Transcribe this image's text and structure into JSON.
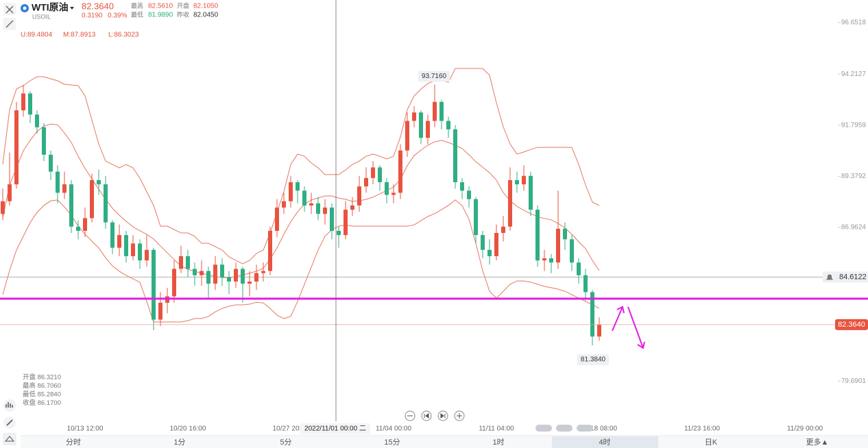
{
  "header": {
    "name": "WTI原油",
    "symbol": "USOIL",
    "price": "82.3640",
    "change": "0.3190",
    "change_pct": "0.39%",
    "high_label": "最高",
    "high": "82.5610",
    "open_label": "开盘",
    "open": "82.1050",
    "low_label": "最低",
    "low": "81.9890",
    "prev_close_label": "昨收",
    "prev_close": "82.0450"
  },
  "chart_data": {
    "type": "candlestick",
    "indicator_labels": [
      "U:89.4804",
      "M:87.8913",
      "L:86.3023"
    ],
    "ohlc_info": [
      "开盘 86.3210",
      "最高 86.7060",
      "最低 85.2840",
      "收盘 86.1700"
    ],
    "crosshair_label": "2022/11/01 00:00 二",
    "ylim": [
      77.79,
      97.72
    ],
    "yticks": [
      96.6518,
      94.2127,
      91.7959,
      89.3792,
      86.9624,
      79.6901
    ],
    "up_color": "#e8533f",
    "down_color": "#2fae84",
    "band_color": "#e7765f",
    "categories": [
      null,
      null,
      null,
      null,
      null,
      null,
      null,
      null,
      null,
      null,
      null,
      null,
      "10/13 12:00",
      null,
      null,
      null,
      null,
      null,
      null,
      null,
      null,
      null,
      null,
      null,
      null,
      null,
      null,
      "10/20 16:00",
      null,
      null,
      null,
      null,
      null,
      null,
      null,
      null,
      null,
      null,
      null,
      null,
      null,
      null,
      "10/27 20:00",
      null,
      null,
      null,
      null,
      null,
      null,
      null,
      null,
      null,
      null,
      null,
      null,
      null,
      null,
      "11/04 00:00",
      null,
      null,
      null,
      null,
      null,
      null,
      null,
      null,
      null,
      null,
      null,
      null,
      null,
      null,
      "11/11 04:00",
      null,
      null,
      null,
      null,
      null,
      null,
      null,
      null,
      null,
      null,
      null,
      null,
      null,
      null,
      "11/18 08:00",
      null,
      null,
      null,
      null,
      null,
      null,
      null,
      null,
      null,
      null,
      null,
      null,
      null,
      null,
      "11/23 16:00",
      null,
      null,
      null,
      null,
      null,
      null,
      null,
      null,
      null,
      null,
      null,
      null,
      null,
      null,
      "11/29 00:00",
      null,
      null
    ],
    "open": [
      87.6,
      88.2,
      89.0,
      92.5,
      93.3,
      92.3,
      91.7,
      90.4,
      89.6,
      88.6,
      89.0,
      87.0,
      86.8,
      87.4,
      89.2,
      89.0,
      87.2,
      86.0,
      86.6,
      85.6,
      86.2,
      85.4,
      85.9,
      82.6,
      83.4,
      83.7,
      85.0,
      85.6,
      85.0,
      84.7,
      84.9,
      84.3,
      85.2,
      84.6,
      84.4,
      85.0,
      84.3,
      84.4,
      84.8,
      84.9,
      86.8,
      87.9,
      88.2,
      89.1,
      88.7,
      88.0,
      88.1,
      87.6,
      87.9,
      86.8,
      86.6,
      87.8,
      88.0,
      88.9,
      89.3,
      89.8,
      89.1,
      88.5,
      88.6,
      90.6,
      92.0,
      92.4,
      91.2,
      92.0,
      92.9,
      92.0,
      91.6,
      89.1,
      88.7,
      88.3,
      86.6,
      85.9,
      85.6,
      86.7,
      87.0,
      89.2,
      89.0,
      89.4,
      87.8,
      85.4,
      85.5,
      85.3,
      86.9,
      86.4,
      85.3,
      84.7,
      83.9,
      81.8,
      null,
      null,
      null,
      null,
      null,
      null,
      null,
      null,
      null,
      null,
      null,
      null,
      null,
      null,
      null,
      null,
      null,
      null,
      null,
      null,
      null,
      null,
      null,
      null,
      null,
      null,
      null,
      null,
      null,
      null,
      null,
      null
    ],
    "high": [
      88.8,
      90.5,
      92.9,
      93.7,
      93.4,
      92.5,
      91.9,
      90.6,
      89.9,
      89.6,
      89.2,
      87.3,
      87.9,
      89.5,
      89.7,
      89.4,
      87.3,
      87.1,
      86.8,
      86.6,
      86.4,
      86.6,
      86.0,
      83.9,
      84.1,
      85.4,
      86.1,
      85.9,
      85.3,
      85.4,
      85.1,
      85.6,
      85.5,
      84.9,
      85.3,
      85.1,
      84.9,
      85.2,
      85.3,
      87.0,
      88.3,
      88.6,
      89.4,
      89.2,
      88.9,
      88.6,
      88.4,
      88.3,
      88.1,
      87.0,
      88.2,
      88.4,
      89.4,
      89.8,
      90.1,
      89.9,
      89.3,
      89.0,
      90.9,
      92.4,
      92.7,
      92.5,
      92.3,
      93.716,
      93.0,
      92.2,
      91.8,
      89.3,
      88.9,
      88.4,
      86.8,
      86.4,
      87.1,
      87.5,
      89.8,
      89.6,
      89.9,
      89.6,
      88.0,
      85.9,
      85.7,
      88.7,
      87.2,
      86.6,
      85.5,
      85.0,
      84.0,
      82.7,
      null,
      null,
      null,
      null,
      null,
      null,
      null,
      null,
      null,
      null,
      null,
      null,
      null,
      null,
      null,
      null,
      null,
      null,
      null,
      null,
      null,
      null,
      null,
      null,
      null,
      null,
      null,
      null,
      null,
      null,
      null,
      null
    ],
    "low": [
      87.3,
      88.0,
      88.8,
      92.2,
      91.9,
      91.4,
      90.1,
      89.2,
      88.1,
      88.3,
      86.7,
      86.4,
      86.5,
      87.2,
      88.5,
      86.9,
      85.7,
      85.6,
      85.3,
      85.4,
      85.0,
      85.1,
      82.1,
      82.3,
      82.9,
      83.4,
      84.8,
      84.6,
      84.2,
      84.2,
      83.6,
      84.0,
      84.2,
      83.8,
      84.1,
      83.4,
      83.7,
      84.0,
      84.4,
      84.7,
      86.5,
      87.6,
      87.9,
      88.1,
      87.7,
      87.6,
      87.3,
      87.1,
      86.4,
      86.0,
      86.4,
      87.5,
      87.7,
      88.6,
      89.0,
      88.7,
      88.1,
      88.1,
      88.3,
      90.3,
      91.7,
      90.9,
      90.9,
      91.7,
      91.6,
      91.2,
      88.8,
      88.3,
      87.9,
      86.2,
      85.5,
      85.2,
      85.4,
      86.3,
      86.8,
      88.6,
      88.7,
      87.5,
      85.1,
      84.9,
      84.8,
      85.0,
      85.9,
      84.9,
      84.3,
      83.5,
      81.384,
      81.6,
      null,
      null,
      null,
      null,
      null,
      null,
      null,
      null,
      null,
      null,
      null,
      null,
      null,
      null,
      null,
      null,
      null,
      null,
      null,
      null,
      null,
      null,
      null,
      null,
      null,
      null,
      null,
      null,
      null,
      null,
      null,
      null
    ],
    "close": [
      88.2,
      89.0,
      92.5,
      93.3,
      92.3,
      91.7,
      90.4,
      89.6,
      88.6,
      89.0,
      87.0,
      86.8,
      87.4,
      89.2,
      89.0,
      87.2,
      86.0,
      86.6,
      85.6,
      86.2,
      85.4,
      85.9,
      82.6,
      83.4,
      83.7,
      85.0,
      85.6,
      85.0,
      84.7,
      84.9,
      84.3,
      85.2,
      84.6,
      84.4,
      85.0,
      84.3,
      84.4,
      84.8,
      84.9,
      86.8,
      87.9,
      88.2,
      89.1,
      88.7,
      88.0,
      88.1,
      87.6,
      87.9,
      86.8,
      86.6,
      87.8,
      88.0,
      88.9,
      89.3,
      89.8,
      89.1,
      88.5,
      88.6,
      90.6,
      92.0,
      92.4,
      91.2,
      92.0,
      92.9,
      92.0,
      91.6,
      89.1,
      88.7,
      88.3,
      86.6,
      85.9,
      85.6,
      86.7,
      87.0,
      89.2,
      89.0,
      89.4,
      87.8,
      85.4,
      85.5,
      85.3,
      86.9,
      86.4,
      85.3,
      84.7,
      83.9,
      81.8,
      82.364,
      null,
      null,
      null,
      null,
      null,
      null,
      null,
      null,
      null,
      null,
      null,
      null,
      null,
      null,
      null,
      null,
      null,
      null,
      null,
      null,
      null,
      null,
      null,
      null,
      null,
      null,
      null,
      null,
      null,
      null,
      null,
      null
    ],
    "upper": [
      89.94,
      92.53,
      93.51,
      93.67,
      93.9,
      94.09,
      94.09,
      93.99,
      93.9,
      93.73,
      93.7,
      93.67,
      93.18,
      92.05,
      90.91,
      90.1,
      89.94,
      89.78,
      89.94,
      89.78,
      89.29,
      88.65,
      88.0,
      87.02,
      87.02,
      86.86,
      86.7,
      86.7,
      86.54,
      86.21,
      86.21,
      86.05,
      85.89,
      85.57,
      85.4,
      85.24,
      85.4,
      85.73,
      85.89,
      86.7,
      87.67,
      88.65,
      89.94,
      90.43,
      90.33,
      90.01,
      89.78,
      89.46,
      89.46,
      89.46,
      89.68,
      89.94,
      90.1,
      90.33,
      90.43,
      90.33,
      90.2,
      90.33,
      91.24,
      92.53,
      93.18,
      93.51,
      93.77,
      93.9,
      93.9,
      93.83,
      94.48,
      94.48,
      94.48,
      94.48,
      94.48,
      94.16,
      92.86,
      91.72,
      90.91,
      90.43,
      90.53,
      90.65,
      90.75,
      90.75,
      90.75,
      90.75,
      90.75,
      90.75,
      89.94,
      88.97,
      88.16,
      88.0,
      null,
      null,
      null,
      null,
      null,
      null,
      null,
      null,
      null,
      null,
      null,
      null,
      null,
      null,
      null,
      null,
      null,
      null,
      null,
      null,
      null,
      null,
      null,
      null,
      null,
      null,
      null,
      null,
      null,
      null,
      null,
      null
    ],
    "middle": [
      87.41,
      88.97,
      89.78,
      90.59,
      91.08,
      91.5,
      91.76,
      91.85,
      91.82,
      91.43,
      90.98,
      90.33,
      89.75,
      89.26,
      88.77,
      88.29,
      87.87,
      87.54,
      87.25,
      86.99,
      86.8,
      86.64,
      86.41,
      86.08,
      85.76,
      85.44,
      85.14,
      84.98,
      84.89,
      84.79,
      84.72,
      84.63,
      84.59,
      84.59,
      84.63,
      84.72,
      84.79,
      84.89,
      85.02,
      85.47,
      85.99,
      86.64,
      87.22,
      87.7,
      88.06,
      88.26,
      88.35,
      88.45,
      88.45,
      88.35,
      88.29,
      88.19,
      88.22,
      88.29,
      88.39,
      88.55,
      88.71,
      88.87,
      89.23,
      89.88,
      90.36,
      90.62,
      90.85,
      91.01,
      91.08,
      90.98,
      90.85,
      90.69,
      90.4,
      90.07,
      89.81,
      89.55,
      89.2,
      88.61,
      88.22,
      87.96,
      87.77,
      87.61,
      87.48,
      87.38,
      87.32,
      87.15,
      86.93,
      86.64,
      86.28,
      85.96,
      85.4,
      84.92,
      null,
      null,
      null,
      null,
      null,
      null,
      null,
      null,
      null,
      null,
      null,
      null,
      null,
      null,
      null,
      null,
      null,
      null,
      null,
      null,
      null,
      null,
      null,
      null,
      null,
      null,
      null,
      null,
      null,
      null,
      null,
      null
    ],
    "lower": [
      83.78,
      84.92,
      85.89,
      86.54,
      87.19,
      87.67,
      88.0,
      88.22,
      88.26,
      87.93,
      87.54,
      87.02,
      86.64,
      86.31,
      85.99,
      85.53,
      85.14,
      84.89,
      84.69,
      84.53,
      84.37,
      83.46,
      82.49,
      82.49,
      82.49,
      82.49,
      82.49,
      82.55,
      82.65,
      82.65,
      82.75,
      82.97,
      83.13,
      83.23,
      83.3,
      83.3,
      83.33,
      83.42,
      83.39,
      83.13,
      82.81,
      82.65,
      82.75,
      83.46,
      84.27,
      85.08,
      85.89,
      86.54,
      86.86,
      87.02,
      87.08,
      87.02,
      87.02,
      87.02,
      87.02,
      87.02,
      87.02,
      87.02,
      87.02,
      87.02,
      87.08,
      87.28,
      87.48,
      87.61,
      87.8,
      88.0,
      88.26,
      88.0,
      87.35,
      86.21,
      84.92,
      83.94,
      83.62,
      83.94,
      84.27,
      84.43,
      84.43,
      84.37,
      84.27,
      84.17,
      84.11,
      84.04,
      83.94,
      83.78,
      83.62,
      83.46,
      83.3,
      83.13,
      null,
      null,
      null,
      null,
      null,
      null,
      null,
      null,
      null,
      null,
      null,
      null,
      null,
      null,
      null,
      null,
      null,
      null,
      null,
      null,
      null,
      null,
      null,
      null,
      null,
      null,
      null,
      null,
      null,
      null,
      null,
      null
    ],
    "high_marker_label": "93.7160",
    "low_marker_label": "81.3840",
    "alert_line": 84.6122,
    "alert_color": "#9a9a9a",
    "last_price_label": "82.3640",
    "drawn_line": 83.59,
    "drawn_color": "#e21ee0"
  },
  "tabs": [
    "分时",
    "1分",
    "5分",
    "15分",
    "1时",
    "4时",
    "日K",
    "更多▲"
  ],
  "active_tab": 5
}
